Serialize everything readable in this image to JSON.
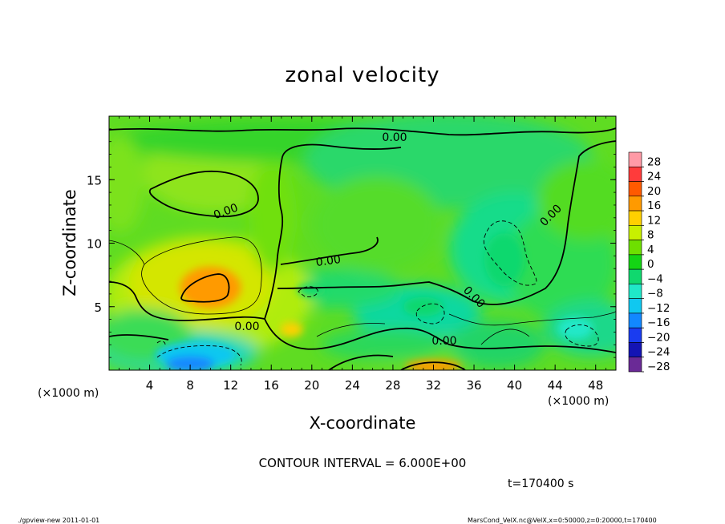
{
  "chart_data": {
    "type": "heatmap",
    "title": "zonal velocity",
    "xlabel": "X-coordinate",
    "ylabel": "Z-coordinate",
    "x_unit": "(×1000 m)",
    "y_unit": "(×1000 m)",
    "xlim": [
      0,
      50
    ],
    "ylim": [
      0,
      20
    ],
    "x_ticks": [
      4,
      8,
      12,
      16,
      20,
      24,
      28,
      32,
      36,
      40,
      44,
      48
    ],
    "y_ticks": [
      5,
      10,
      15
    ],
    "contour_interval_text": "CONTOUR INTERVAL = 6.000E+00",
    "time_text": "t=170400 s",
    "contour_labels": [
      "0.00",
      "0.00",
      "0.00",
      "0.00",
      "0.00",
      "0.00",
      "0.00"
    ],
    "colorbar": {
      "levels": [
        28,
        24,
        20,
        16,
        12,
        8,
        4,
        0,
        -4,
        -8,
        -12,
        -16,
        -20,
        -24,
        -28
      ],
      "colors": [
        "#ff9aa6",
        "#ff3b3b",
        "#ff5a00",
        "#ff9a00",
        "#ffd000",
        "#c8f000",
        "#6ee000",
        "#14d414",
        "#10d86e",
        "#20e8c8",
        "#10c8f0",
        "#1288ff",
        "#1a3cf0",
        "#1414b4",
        "#6a2a96"
      ],
      "bins": [
        {
          "range": [
            24,
            28
          ],
          "color": "#ff9aa6"
        },
        {
          "range": [
            20,
            24
          ],
          "color": "#ff3b3b"
        },
        {
          "range": [
            16,
            20
          ],
          "color": "#ff5a00"
        },
        {
          "range": [
            12,
            16
          ],
          "color": "#ff9a00"
        },
        {
          "range": [
            8,
            12
          ],
          "color": "#ffd000"
        },
        {
          "range": [
            4,
            8
          ],
          "color": "#c8f000"
        },
        {
          "range": [
            0,
            4
          ],
          "color": "#6ee000"
        },
        {
          "range": [
            -4,
            0
          ],
          "color": "#14d414"
        },
        {
          "range": [
            -8,
            -4
          ],
          "color": "#10d86e"
        },
        {
          "range": [
            -12,
            -8
          ],
          "color": "#20e8c8"
        },
        {
          "range": [
            -16,
            -12
          ],
          "color": "#10c8f0"
        },
        {
          "range": [
            -20,
            -16
          ],
          "color": "#1288ff"
        },
        {
          "range": [
            -24,
            -20
          ],
          "color": "#1a3cf0"
        },
        {
          "range": [
            -28,
            -24
          ],
          "color": "#1414b4"
        },
        {
          "range": [
            -32,
            -28
          ],
          "color": "#6a2a96"
        }
      ]
    },
    "features": [
      {
        "kind": "max",
        "x": 10,
        "z": 6.5,
        "value": 12
      },
      {
        "kind": "max",
        "x": 18,
        "z": 3.2,
        "value": 8
      },
      {
        "kind": "max",
        "x": 32,
        "z": 0.3,
        "value": 12
      },
      {
        "kind": "min",
        "x": 8.5,
        "z": 1.2,
        "value": -14
      },
      {
        "kind": "min",
        "x": 39,
        "z": 8.7,
        "value": -7
      },
      {
        "kind": "min",
        "x": 31,
        "z": 5,
        "value": -7
      },
      {
        "kind": "min",
        "x": 46,
        "z": 3.3,
        "value": -10
      },
      {
        "kind": "min",
        "x": 20,
        "z": 6.3,
        "value": -5
      }
    ]
  },
  "footer": {
    "left": "./gpview-new  2011-01-01",
    "right": "MarsCond_VelX.nc@VelX,x=0:50000,z=0:20000,t=170400"
  }
}
